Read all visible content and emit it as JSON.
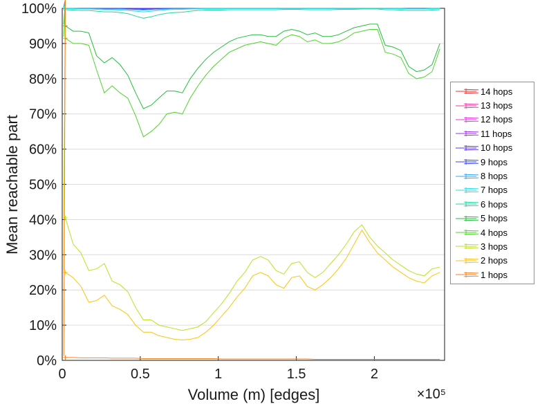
{
  "figure": {
    "background": "#ffffff",
    "axis_color": "#1a1a1a",
    "grid_color": "#dcdcdc",
    "legend_border_color": "#8f8f8f"
  },
  "chart_data": {
    "type": "line",
    "title": "",
    "xlabel": "Volume (m) [edges]",
    "ylabel": "Mean reachable part",
    "x_exponent_label": "×10⁵",
    "marker": "*",
    "grid": "horizontal",
    "legend_position": "right-outside",
    "xlim": [
      0,
      2.45
    ],
    "ylim": [
      0,
      100
    ],
    "x_ticks": {
      "values": [
        0,
        0.5,
        1,
        1.5,
        2
      ],
      "labels": [
        "0",
        "0.5",
        "1",
        "1.5",
        "2"
      ]
    },
    "y_ticks": {
      "values": [
        0,
        10,
        20,
        30,
        40,
        50,
        60,
        70,
        80,
        90,
        100
      ],
      "labels": [
        "0%",
        "10%",
        "20%",
        "30%",
        "40%",
        "50%",
        "60%",
        "70%",
        "80%",
        "90%",
        "100%"
      ]
    },
    "x": [
      0.02,
      0.07,
      0.12,
      0.17,
      0.22,
      0.27,
      0.32,
      0.37,
      0.42,
      0.47,
      0.52,
      0.57,
      0.62,
      0.67,
      0.72,
      0.77,
      0.82,
      0.87,
      0.92,
      0.97,
      1.02,
      1.07,
      1.12,
      1.17,
      1.22,
      1.27,
      1.32,
      1.37,
      1.42,
      1.47,
      1.52,
      1.57,
      1.62,
      1.67,
      1.72,
      1.77,
      1.82,
      1.87,
      1.92,
      1.97,
      2.02,
      2.07,
      2.12,
      2.17,
      2.22,
      2.27,
      2.32,
      2.37,
      2.42
    ],
    "series": [
      {
        "name": "14 hops",
        "color": "#f62d2d",
        "values": [
          100,
          100,
          100,
          100,
          100,
          100,
          100,
          100,
          100,
          100,
          100,
          100,
          100,
          100,
          100,
          100,
          100,
          100,
          100,
          100,
          100,
          100,
          100,
          100,
          100,
          100,
          100,
          100,
          100,
          100,
          100,
          100,
          100,
          100,
          100,
          100,
          100,
          100,
          100,
          100,
          100,
          100,
          100,
          100,
          100,
          100,
          100,
          100,
          100
        ]
      },
      {
        "name": "13 hops",
        "color": "#fb30a3",
        "values": [
          100,
          100,
          100,
          100,
          100,
          100,
          100,
          100,
          100,
          100,
          100,
          100,
          100,
          100,
          100,
          100,
          100,
          100,
          100,
          100,
          100,
          100,
          100,
          100,
          100,
          100,
          100,
          100,
          100,
          100,
          100,
          100,
          100,
          100,
          100,
          100,
          100,
          100,
          100,
          100,
          100,
          100,
          100,
          100,
          100,
          100,
          100,
          100,
          100
        ]
      },
      {
        "name": "12 hops",
        "color": "#ee2fee",
        "values": [
          100,
          100,
          100,
          100,
          100,
          100,
          100,
          100,
          100,
          100,
          100,
          100,
          100,
          100,
          100,
          100,
          100,
          100,
          100,
          100,
          100,
          100,
          100,
          100,
          100,
          100,
          100,
          100,
          100,
          100,
          100,
          100,
          100,
          100,
          100,
          100,
          100,
          100,
          100,
          100,
          100,
          100,
          100,
          100,
          100,
          100,
          100,
          100,
          100
        ]
      },
      {
        "name": "11 hops",
        "color": "#9b30f5",
        "values": [
          100,
          100,
          100,
          100,
          100,
          100,
          100,
          100,
          100,
          100,
          100,
          100,
          100,
          100,
          100,
          100,
          100,
          100,
          100,
          100,
          100,
          100,
          100,
          100,
          100,
          100,
          100,
          100,
          100,
          100,
          100,
          100,
          100,
          100,
          100,
          100,
          100,
          100,
          100,
          100,
          100,
          100,
          100,
          100,
          100,
          100,
          100,
          100,
          100
        ]
      },
      {
        "name": "10 hops",
        "color": "#5a30f5",
        "values": [
          100,
          100,
          100,
          100,
          100,
          100,
          100,
          100,
          100,
          99.9,
          99.9,
          99.9,
          100,
          100,
          100,
          100,
          100,
          100,
          100,
          100,
          100,
          100,
          100,
          100,
          100,
          100,
          100,
          100,
          100,
          100,
          100,
          100,
          100,
          100,
          100,
          100,
          100,
          100,
          100,
          100,
          100,
          100,
          100,
          100,
          100,
          100,
          100,
          100,
          100
        ]
      },
      {
        "name": "9 hops",
        "color": "#3a45f5",
        "values": [
          100,
          100,
          100,
          100,
          100,
          99.9,
          99.9,
          99.9,
          99.8,
          99.8,
          99.7,
          99.8,
          99.9,
          99.9,
          100,
          100,
          100,
          100,
          100,
          100,
          100,
          100,
          100,
          100,
          100,
          100,
          100,
          100,
          100,
          100,
          100,
          100,
          100,
          100,
          100,
          100,
          100,
          100,
          100,
          100,
          100,
          100,
          100,
          100,
          100,
          100,
          100,
          100,
          100
        ]
      },
      {
        "name": "8 hops",
        "color": "#35a4f0",
        "values": [
          100,
          100,
          99.9,
          99.9,
          99.9,
          99.8,
          99.8,
          99.8,
          99.7,
          99.6,
          99.5,
          99.6,
          99.7,
          99.8,
          99.9,
          99.9,
          99.9,
          100,
          100,
          100,
          100,
          100,
          100,
          100,
          100,
          100,
          100,
          100,
          100,
          100,
          100,
          100,
          100,
          100,
          100,
          100,
          100,
          100,
          100,
          100,
          100,
          100,
          100,
          100,
          99.9,
          99.9,
          99.9,
          100,
          100
        ]
      },
      {
        "name": "7 hops",
        "color": "#2fd9e0",
        "values": [
          99.9,
          99.9,
          99.8,
          99.8,
          99.7,
          99.6,
          99.6,
          99.5,
          99.4,
          99.2,
          99,
          99.2,
          99.4,
          99.6,
          99.7,
          99.7,
          99.8,
          99.8,
          99.9,
          99.9,
          99.9,
          99.9,
          99.9,
          99.9,
          99.9,
          99.9,
          99.9,
          99.9,
          99.9,
          99.9,
          99.9,
          99.9,
          99.9,
          99.9,
          99.9,
          99.9,
          99.9,
          99.9,
          99.9,
          99.9,
          99.9,
          99.9,
          99.9,
          99.9,
          99.8,
          99.8,
          99.8,
          99.9,
          99.9
        ]
      },
      {
        "name": "6 hops",
        "color": "#23d6a0",
        "values": [
          99.6,
          99.5,
          99.4,
          99.4,
          99.2,
          99,
          99,
          98.8,
          98.5,
          97.8,
          97.2,
          97.6,
          98.2,
          98.6,
          98.8,
          98.9,
          99.2,
          99.4,
          99.5,
          99.5,
          99.5,
          99.6,
          99.6,
          99.6,
          99.6,
          99.6,
          99.6,
          99.6,
          99.7,
          99.7,
          99.7,
          99.6,
          99.6,
          99.6,
          99.6,
          99.7,
          99.7,
          99.7,
          99.8,
          99.8,
          99.8,
          99.6,
          99.6,
          99.5,
          99.4,
          99.4,
          99.4,
          99.5,
          99.6
        ]
      },
      {
        "name": "5 hops",
        "color": "#1fc13d",
        "values": [
          95,
          93.5,
          93.5,
          93,
          86.5,
          84.5,
          86,
          84,
          81,
          76,
          71.5,
          72.5,
          74.5,
          76.5,
          76.5,
          76,
          80,
          83,
          85.5,
          87.5,
          89,
          90.5,
          91.5,
          92,
          92.5,
          92.5,
          92,
          92,
          93.5,
          94,
          93.5,
          92.5,
          93,
          92,
          92,
          92.5,
          93.5,
          94.5,
          95,
          95.5,
          95.5,
          89.5,
          89,
          88,
          83.5,
          82,
          82.5,
          84,
          90
        ]
      },
      {
        "name": "4 hops",
        "color": "#4fd42a",
        "values": [
          91.5,
          90,
          90,
          89.5,
          82.5,
          76,
          78,
          76,
          74.5,
          69.5,
          63.5,
          65,
          67,
          70,
          70.5,
          70,
          74.5,
          78,
          81,
          83.5,
          85.5,
          87.5,
          88.5,
          89.5,
          90,
          90.5,
          90,
          89.5,
          91.5,
          92.5,
          92,
          90.5,
          91,
          90,
          90,
          90.5,
          91.5,
          93,
          93.5,
          94,
          94,
          87.5,
          87,
          86,
          81.5,
          80,
          80.5,
          82,
          88.5
        ]
      },
      {
        "name": "3 hops",
        "color": "#bce21e",
        "values": [
          40.5,
          33,
          30.5,
          25.5,
          26,
          27.5,
          22.5,
          21.5,
          19.5,
          15,
          11.5,
          11.5,
          10,
          9.5,
          9,
          8.5,
          9,
          9.5,
          11,
          13.5,
          16,
          19,
          22.5,
          25,
          28.5,
          29.5,
          28.5,
          25.5,
          24.5,
          27.5,
          28,
          25,
          23.5,
          25,
          27.5,
          30,
          33,
          36.5,
          38.5,
          35,
          32.5,
          30.5,
          28.5,
          27,
          25.5,
          24.5,
          24,
          26,
          26.5
        ]
      },
      {
        "name": "2 hops",
        "color": "#fcc40f",
        "values": [
          25,
          23.5,
          21,
          16.5,
          17,
          18.5,
          15.5,
          14.5,
          13,
          10,
          8,
          8,
          7,
          6.5,
          6,
          5.8,
          6,
          6.5,
          8,
          10,
          12.5,
          15,
          18,
          20.5,
          24,
          25,
          24,
          21.5,
          20.5,
          23.5,
          24,
          21,
          20,
          21.5,
          23.5,
          26,
          29,
          33,
          37,
          33.5,
          30.5,
          28.5,
          26.5,
          25,
          23.5,
          22.5,
          22,
          24,
          25
        ]
      },
      {
        "name": "1 hops",
        "color": "#f8821f",
        "values": [
          0.8,
          0.8,
          0.7,
          0.7,
          0.7,
          0.7,
          0.6,
          0.6,
          0.6,
          0.6,
          0.5,
          0.5,
          0.5,
          0.5,
          0.5,
          0.5,
          0.5,
          0.5,
          0.5,
          0.5,
          0.4,
          0.4,
          0.4,
          0.4,
          0.4,
          0.4,
          0.4,
          0.4,
          0.4,
          0.4,
          0.4,
          0.4,
          0.3,
          0.3,
          0.3,
          0.3,
          0.3,
          0.3,
          0.3,
          0.3,
          0.3,
          0.3,
          0.3,
          0.3,
          0.3,
          0.3,
          0.3,
          0.3,
          0.3
        ]
      }
    ]
  }
}
